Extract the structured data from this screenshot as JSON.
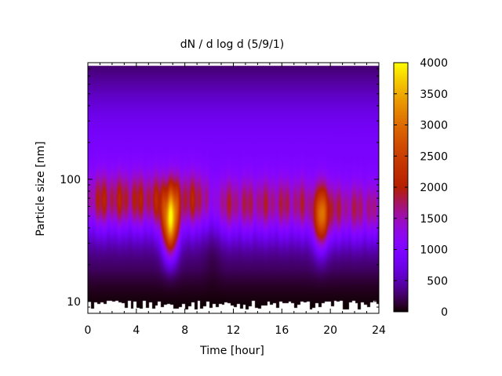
{
  "chart_data": {
    "type": "heatmap",
    "title": "dN / d log d (5/9/1)",
    "xlabel": "Time [hour]",
    "ylabel": "Particle size [nm]",
    "xlim": [
      0,
      24
    ],
    "ylim": [
      8,
      900
    ],
    "yscale": "log",
    "x_ticks": [
      0,
      4,
      8,
      12,
      16,
      20,
      24
    ],
    "y_ticks": [
      10,
      100
    ],
    "colorbar": {
      "range": [
        0,
        4000
      ],
      "ticks": [
        0,
        500,
        1000,
        1500,
        2000,
        2500,
        3000,
        3500,
        4000
      ],
      "colormap": "gnuplot-pm3d-black-purple-red-yellow"
    },
    "features": {
      "data_top_nm": 850,
      "background_level": 700,
      "bands": [
        {
          "name": "morning-mode",
          "t_start": 0,
          "t_end": 10,
          "d_peak_nm": 65,
          "level": 2200
        },
        {
          "name": "morning-peak",
          "t_center": 6.8,
          "d_peak_nm": 42,
          "level": 3600
        },
        {
          "name": "afternoon-mode",
          "t_start": 10.5,
          "t_end": 18.5,
          "d_peak_nm": 60,
          "level": 2000
        },
        {
          "name": "evening-peak",
          "t_center": 19.2,
          "d_peak_nm": 50,
          "level": 3200
        },
        {
          "name": "night-mode",
          "t_start": 19.5,
          "t_end": 24,
          "d_peak_nm": 55,
          "level": 2000
        }
      ]
    }
  }
}
